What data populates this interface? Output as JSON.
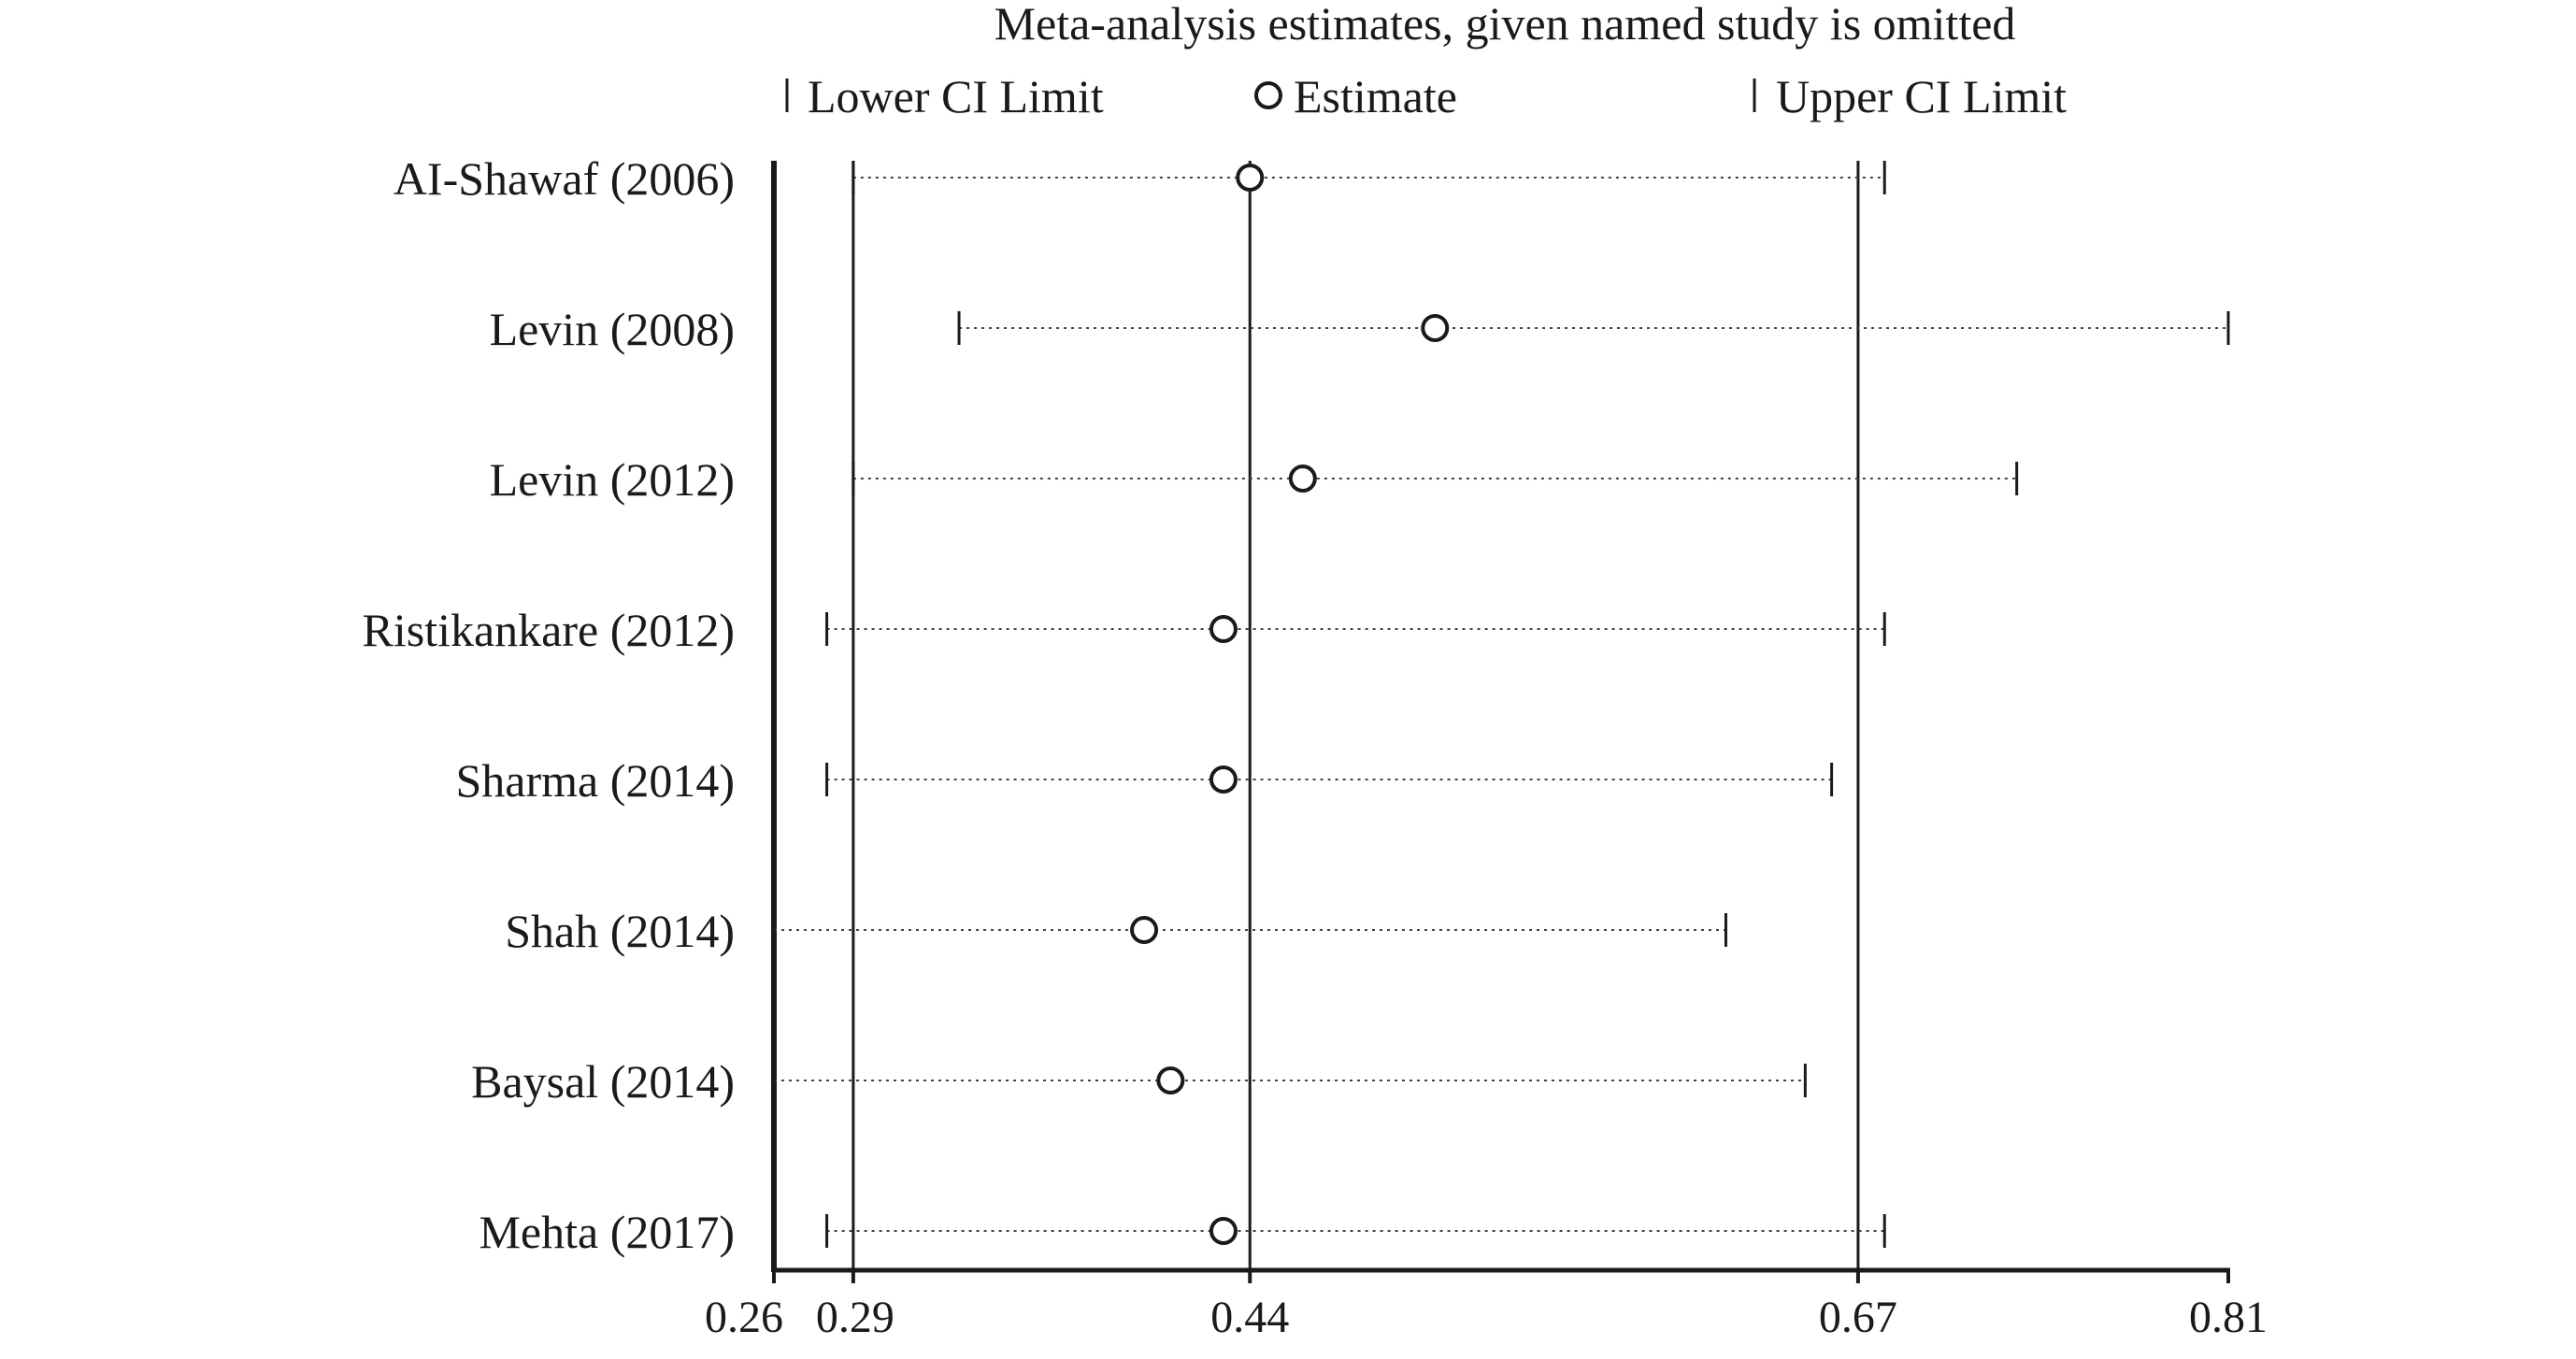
{
  "chart_data": {
    "type": "forest",
    "title": "Meta-analysis estimates, given named study is omitted",
    "legend": {
      "lower": "Lower CI Limit",
      "estimate": "Estimate",
      "upper": "Upper CI Limit",
      "placement": "top"
    },
    "xlim": [
      0.26,
      0.81
    ],
    "x_ticks": [
      {
        "value": 0.26,
        "label": "0.26"
      },
      {
        "value": 0.29,
        "label": "0.29"
      },
      {
        "value": 0.44,
        "label": "0.44"
      },
      {
        "value": 0.67,
        "label": "0.67"
      },
      {
        "value": 0.81,
        "label": "0.81"
      }
    ],
    "reference_lines": [
      0.29,
      0.44,
      0.67
    ],
    "studies": [
      {
        "label": "AI-Shawaf (2006)",
        "lower": 0.29,
        "estimate": 0.44,
        "upper": 0.68
      },
      {
        "label": "Levin (2008)",
        "lower": 0.33,
        "estimate": 0.51,
        "upper": 0.81
      },
      {
        "label": "Levin (2012)",
        "lower": 0.29,
        "estimate": 0.46,
        "upper": 0.73
      },
      {
        "label": "Ristikankare (2012)",
        "lower": 0.28,
        "estimate": 0.43,
        "upper": 0.68
      },
      {
        "label": "Sharma (2014)",
        "lower": 0.28,
        "estimate": 0.43,
        "upper": 0.66
      },
      {
        "label": "Shah (2014)",
        "lower": 0.26,
        "estimate": 0.4,
        "upper": 0.62
      },
      {
        "label": "Baysal (2014)",
        "lower": 0.26,
        "estimate": 0.41,
        "upper": 0.65
      },
      {
        "label": "Mehta (2017)",
        "lower": 0.28,
        "estimate": 0.43,
        "upper": 0.68
      }
    ]
  }
}
